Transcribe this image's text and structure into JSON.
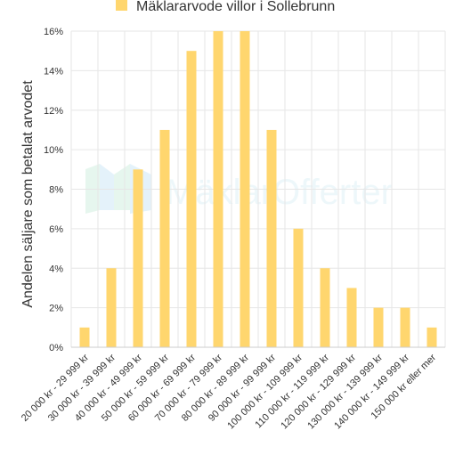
{
  "watermark": "MäklarOfferter",
  "colors": {
    "bar": "#ffd66e",
    "grid": "#e6e6e6",
    "axis": "#cccccc",
    "text": "#333333"
  },
  "chart_data": {
    "type": "bar",
    "legend": {
      "name": "Mäklararvode villor i Sollebrunn",
      "position": "top-center"
    },
    "ylabel": "Andelen säljare som betalat arvodet",
    "ylim": [
      0,
      16
    ],
    "yticks": [
      "0%",
      "2%",
      "4%",
      "6%",
      "8%",
      "10%",
      "12%",
      "14%",
      "16%"
    ],
    "grid": true,
    "categories": [
      "20 000 kr - 29 999 kr",
      "30 000 kr - 39 999 kr",
      "40 000 kr - 49 999 kr",
      "50 000 kr - 59 999 kr",
      "60 000 kr - 69 999 kr",
      "70 000 kr - 79 999 kr",
      "80 000 kr - 89 999 kr",
      "90 000 kr - 99 999 kr",
      "100 000 kr - 109 999 kr",
      "110 000 kr - 119 999 kr",
      "120 000 kr - 129 999 kr",
      "130 000 kr - 139 999 kr",
      "140 000 kr - 149 999 kr",
      "150 000 kr eller mer"
    ],
    "values": [
      1,
      4,
      9,
      11,
      15,
      16,
      16,
      11,
      6,
      4,
      3,
      2,
      2,
      1
    ]
  }
}
